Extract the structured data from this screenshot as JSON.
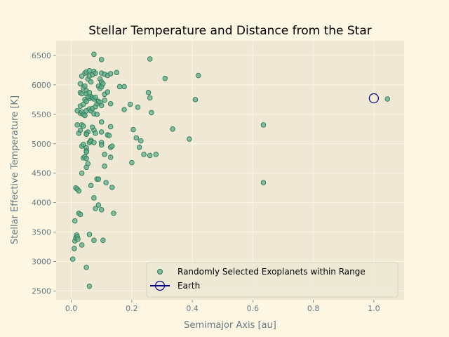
{
  "colors": {
    "figure_bg": "#fdf6e3",
    "axes_bg": "#eee8d5",
    "grid": "#fdf6e3",
    "tick_text": "#657b83",
    "points_fill": "#5fae8f",
    "points_edge": "#2d7a52",
    "earth": "#00008b"
  },
  "chart_data": {
    "type": "scatter",
    "title": "Stellar Temperature and Distance from the Star",
    "xlabel": "Semimajor Axis [au]",
    "ylabel": "Stellar Effective Temperature [K]",
    "xlim": [
      -0.05,
      1.1
    ],
    "ylim": [
      2350,
      6750
    ],
    "x_ticks": [
      0.0,
      0.2,
      0.4,
      0.6,
      0.8,
      1.0
    ],
    "x_tick_labels": [
      "0.0",
      "0.2",
      "0.4",
      "0.6",
      "0.8",
      "1.0"
    ],
    "y_ticks": [
      2500,
      3000,
      3500,
      4000,
      4500,
      5000,
      5500,
      6000,
      6500
    ],
    "y_tick_labels": [
      "2500",
      "3000",
      "3500",
      "4000",
      "4500",
      "5000",
      "5500",
      "6000",
      "6500"
    ],
    "grid": true,
    "legend_position": "lower-right",
    "series": [
      {
        "name": "Randomly Selected Exoplanets within Range",
        "marker": "circle",
        "points": [
          [
            0.005,
            3040
          ],
          [
            0.01,
            3220
          ],
          [
            0.012,
            3350
          ],
          [
            0.015,
            3400
          ],
          [
            0.018,
            3450
          ],
          [
            0.02,
            3420
          ],
          [
            0.022,
            3380
          ],
          [
            0.025,
            3820
          ],
          [
            0.03,
            3800
          ],
          [
            0.035,
            3280
          ],
          [
            0.012,
            3690
          ],
          [
            0.015,
            4250
          ],
          [
            0.02,
            4230
          ],
          [
            0.025,
            4200
          ],
          [
            0.035,
            4500
          ],
          [
            0.05,
            2900
          ],
          [
            0.06,
            2580
          ],
          [
            0.06,
            3460
          ],
          [
            0.075,
            3360
          ],
          [
            0.08,
            3900
          ],
          [
            0.09,
            3960
          ],
          [
            0.1,
            3880
          ],
          [
            0.105,
            3360
          ],
          [
            0.14,
            3820
          ],
          [
            0.02,
            5320
          ],
          [
            0.025,
            5180
          ],
          [
            0.03,
            5230
          ],
          [
            0.035,
            5320
          ],
          [
            0.04,
            5300
          ],
          [
            0.035,
            4960
          ],
          [
            0.04,
            4990
          ],
          [
            0.05,
            5180
          ],
          [
            0.055,
            5200
          ],
          [
            0.05,
            5160
          ],
          [
            0.06,
            5020
          ],
          [
            0.065,
            5060
          ],
          [
            0.07,
            5280
          ],
          [
            0.075,
            5230
          ],
          [
            0.08,
            5180
          ],
          [
            0.065,
            5040
          ],
          [
            0.075,
            5020
          ],
          [
            0.05,
            4930
          ],
          [
            0.05,
            4880
          ],
          [
            0.05,
            4860
          ],
          [
            0.04,
            4760
          ],
          [
            0.045,
            4780
          ],
          [
            0.05,
            4750
          ],
          [
            0.055,
            4660
          ],
          [
            0.05,
            4600
          ],
          [
            0.065,
            4290
          ],
          [
            0.075,
            4080
          ],
          [
            0.085,
            4400
          ],
          [
            0.09,
            4400
          ],
          [
            0.1,
            5200
          ],
          [
            0.1,
            5020
          ],
          [
            0.1,
            4980
          ],
          [
            0.11,
            4820
          ],
          [
            0.11,
            4620
          ],
          [
            0.115,
            4340
          ],
          [
            0.12,
            5150
          ],
          [
            0.125,
            5140
          ],
          [
            0.13,
            4770
          ],
          [
            0.13,
            4940
          ],
          [
            0.135,
            4960
          ],
          [
            0.135,
            4260
          ],
          [
            0.13,
            5290
          ],
          [
            0.02,
            5560
          ],
          [
            0.03,
            5520
          ],
          [
            0.035,
            5540
          ],
          [
            0.04,
            5500
          ],
          [
            0.045,
            5480
          ],
          [
            0.05,
            5560
          ],
          [
            0.03,
            5640
          ],
          [
            0.04,
            5670
          ],
          [
            0.045,
            5750
          ],
          [
            0.05,
            5720
          ],
          [
            0.06,
            5770
          ],
          [
            0.065,
            5800
          ],
          [
            0.07,
            5780
          ],
          [
            0.075,
            5760
          ],
          [
            0.08,
            5790
          ],
          [
            0.06,
            5590
          ],
          [
            0.065,
            5560
          ],
          [
            0.07,
            5600
          ],
          [
            0.075,
            5510
          ],
          [
            0.085,
            5500
          ],
          [
            0.08,
            5630
          ],
          [
            0.085,
            5680
          ],
          [
            0.09,
            5720
          ],
          [
            0.095,
            5700
          ],
          [
            0.1,
            5650
          ],
          [
            0.11,
            5740
          ],
          [
            0.1,
            5370
          ],
          [
            0.03,
            5870
          ],
          [
            0.035,
            5850
          ],
          [
            0.04,
            5950
          ],
          [
            0.045,
            5980
          ],
          [
            0.05,
            5900
          ],
          [
            0.055,
            5800
          ],
          [
            0.05,
            5850
          ],
          [
            0.06,
            5870
          ],
          [
            0.03,
            6020
          ],
          [
            0.055,
            6100
          ],
          [
            0.06,
            6150
          ],
          [
            0.065,
            6050
          ],
          [
            0.07,
            6170
          ],
          [
            0.075,
            6230
          ],
          [
            0.08,
            6200
          ],
          [
            0.035,
            6150
          ],
          [
            0.045,
            6200
          ],
          [
            0.05,
            6220
          ],
          [
            0.06,
            6240
          ],
          [
            0.075,
            6520
          ],
          [
            0.095,
            6100
          ],
          [
            0.09,
            5980
          ],
          [
            0.095,
            5940
          ],
          [
            0.1,
            5970
          ],
          [
            0.1,
            6050
          ],
          [
            0.105,
            6020
          ],
          [
            0.1,
            6200
          ],
          [
            0.11,
            6180
          ],
          [
            0.12,
            6160
          ],
          [
            0.13,
            6190
          ],
          [
            0.1,
            6430
          ],
          [
            0.11,
            5840
          ],
          [
            0.12,
            5880
          ],
          [
            0.13,
            5680
          ],
          [
            0.15,
            6210
          ],
          [
            0.16,
            5970
          ],
          [
            0.175,
            5970
          ],
          [
            0.175,
            5580
          ],
          [
            0.195,
            5670
          ],
          [
            0.2,
            4680
          ],
          [
            0.205,
            5240
          ],
          [
            0.215,
            5100
          ],
          [
            0.22,
            5620
          ],
          [
            0.225,
            4940
          ],
          [
            0.23,
            5050
          ],
          [
            0.24,
            4820
          ],
          [
            0.255,
            5870
          ],
          [
            0.26,
            5780
          ],
          [
            0.26,
            4800
          ],
          [
            0.265,
            5530
          ],
          [
            0.26,
            6440
          ],
          [
            0.28,
            4820
          ],
          [
            0.31,
            6110
          ],
          [
            0.335,
            5250
          ],
          [
            0.39,
            5080
          ],
          [
            0.41,
            5750
          ],
          [
            0.42,
            6160
          ],
          [
            0.635,
            5320
          ],
          [
            0.635,
            4340
          ],
          [
            1.045,
            5760
          ]
        ]
      },
      {
        "name": "Earth",
        "marker": "open-circle",
        "points": [
          [
            1.0,
            5772
          ]
        ]
      }
    ]
  }
}
